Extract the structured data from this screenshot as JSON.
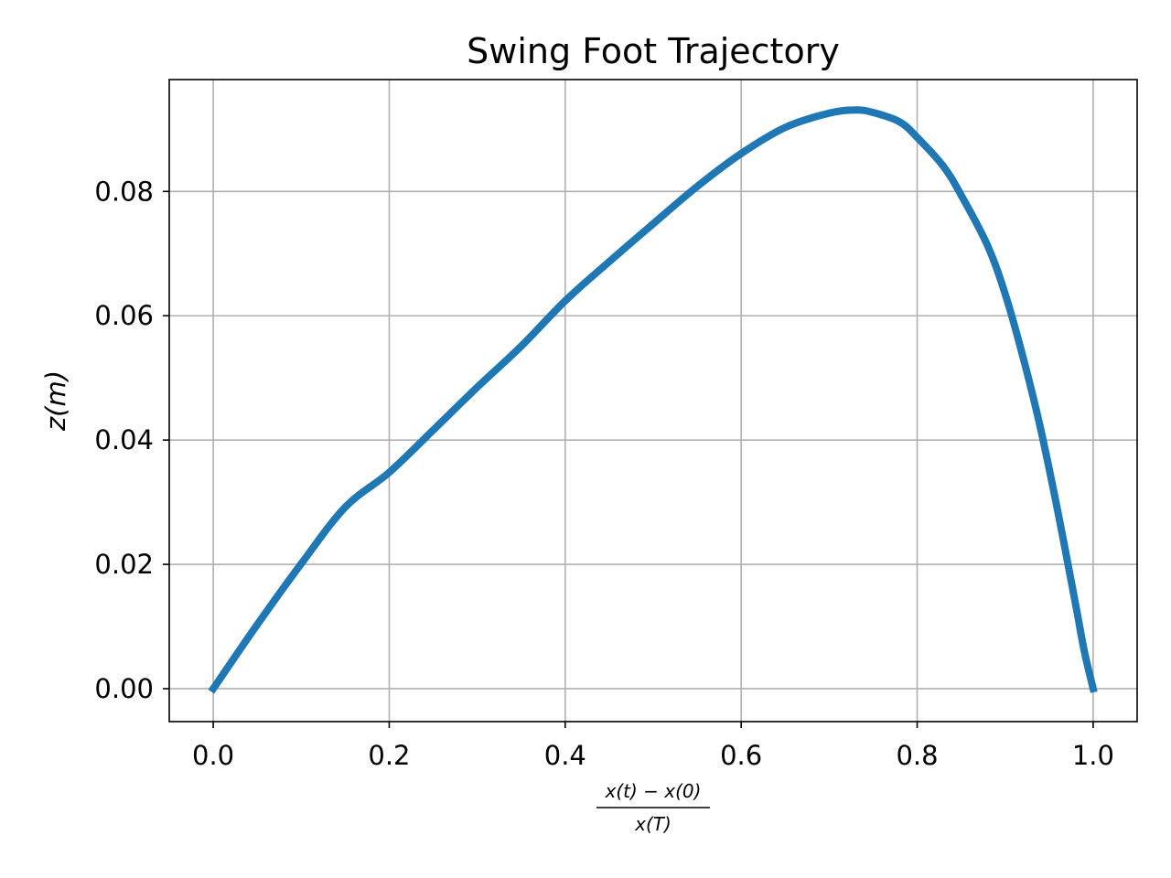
{
  "chart_data": {
    "type": "line",
    "title": "Swing Foot Trajectory",
    "xlabel_numerator": "x(t) − x(0)",
    "xlabel_denominator": "x(T)",
    "ylabel": "z(m)",
    "xlim": [
      -0.05,
      1.05
    ],
    "ylim": [
      -0.0053,
      0.098
    ],
    "x_ticks": [
      0.0,
      0.2,
      0.4,
      0.6,
      0.8,
      1.0
    ],
    "x_tick_labels": [
      "0.0",
      "0.2",
      "0.4",
      "0.6",
      "0.8",
      "1.0"
    ],
    "y_ticks": [
      0.0,
      0.02,
      0.04,
      0.06,
      0.08
    ],
    "y_tick_labels": [
      "0.00",
      "0.02",
      "0.04",
      "0.06",
      "0.08"
    ],
    "grid": true,
    "series": [
      {
        "color": "#1f77b4",
        "x": [
          0.0,
          0.05,
          0.1,
          0.15,
          0.2,
          0.25,
          0.3,
          0.35,
          0.4,
          0.45,
          0.5,
          0.55,
          0.6,
          0.65,
          0.7,
          0.73,
          0.75,
          0.78,
          0.8,
          0.83,
          0.85,
          0.88,
          0.9,
          0.92,
          0.94,
          0.96,
          0.98,
          0.99,
          1.0
        ],
        "y": [
          0.0,
          0.0103,
          0.0201,
          0.0292,
          0.0348,
          0.0416,
          0.0485,
          0.0551,
          0.0624,
          0.0687,
          0.0748,
          0.0808,
          0.0861,
          0.0903,
          0.0926,
          0.0931,
          0.0927,
          0.0912,
          0.0887,
          0.084,
          0.0794,
          0.0713,
          0.0635,
          0.0535,
          0.042,
          0.0284,
          0.0136,
          0.006,
          0.0
        ]
      }
    ]
  }
}
